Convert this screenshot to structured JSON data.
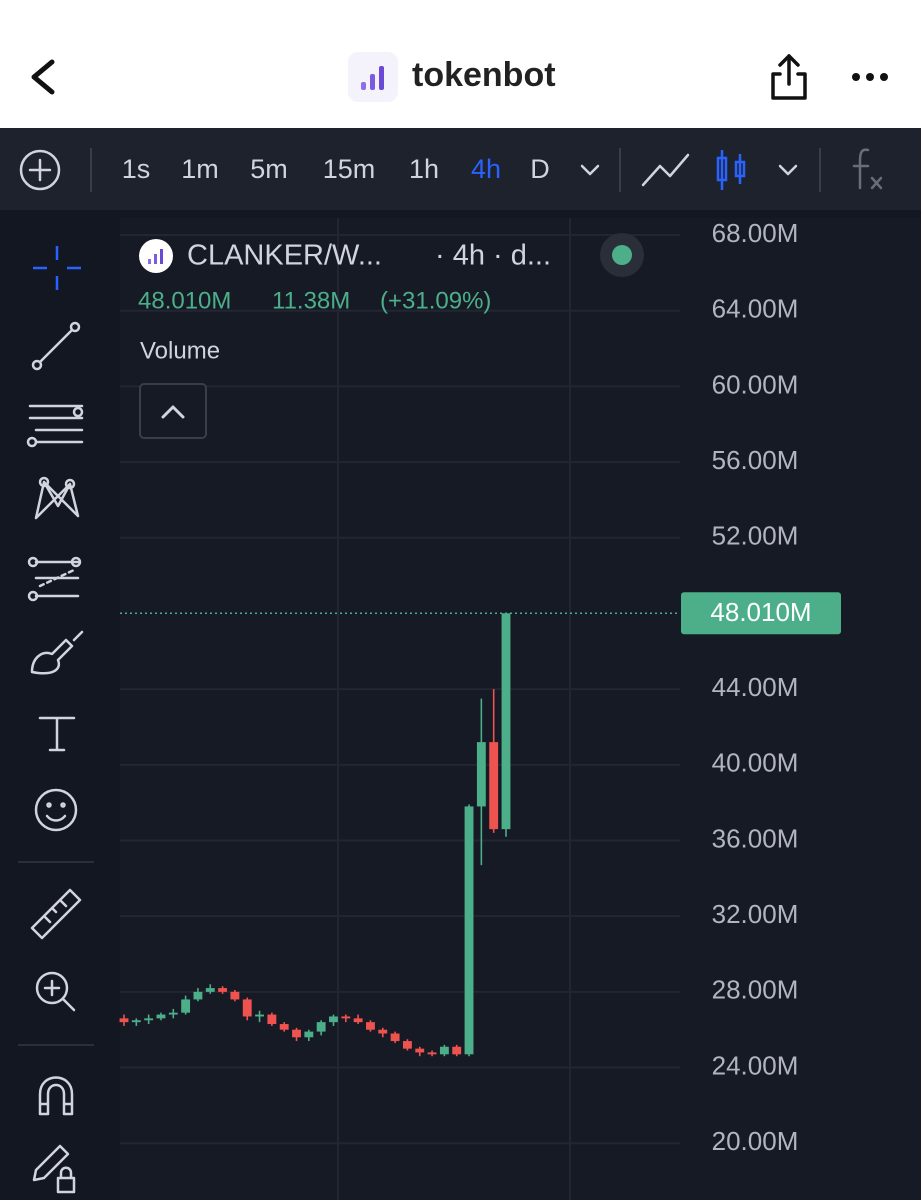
{
  "header": {
    "title": "tokenbot"
  },
  "toolbar": {
    "intervals": [
      "1s",
      "1m",
      "5m",
      "15m",
      "1h",
      "4h",
      "D"
    ],
    "active_interval_index": 5
  },
  "legend": {
    "symbol": "CLANKER/W...",
    "interval_text": "· 4h · d...",
    "price": "48.010M",
    "change": "11.38M",
    "change_percent": "(+31.09%)",
    "indicator": "Volume"
  },
  "chart": {
    "type": "candlestick",
    "ylim": [
      17,
      68.9
    ],
    "yticks": [
      {
        "value": 68,
        "label": "68.00M"
      },
      {
        "value": 64,
        "label": "64.00M"
      },
      {
        "value": 60,
        "label": "60.00M"
      },
      {
        "value": 56,
        "label": "56.00M"
      },
      {
        "value": 52,
        "label": "52.00M"
      },
      {
        "value": 44,
        "label": "44.00M"
      },
      {
        "value": 40,
        "label": "40.00M"
      },
      {
        "value": 36,
        "label": "36.00M"
      },
      {
        "value": 32,
        "label": "32.00M"
      },
      {
        "value": 28,
        "label": "28.00M"
      },
      {
        "value": 24,
        "label": "24.00M"
      },
      {
        "value": 20,
        "label": "20.00M"
      }
    ],
    "last_price": {
      "value": 48.01,
      "label": "48.010M"
    },
    "up_color": "#4caf8a",
    "down_color": "#ef5350",
    "candles": [
      {
        "open": 26.6,
        "high": 26.8,
        "low": 26.2,
        "close": 26.4
      },
      {
        "open": 26.4,
        "high": 26.6,
        "low": 26.2,
        "close": 26.5
      },
      {
        "open": 26.5,
        "high": 26.8,
        "low": 26.3,
        "close": 26.6
      },
      {
        "open": 26.6,
        "high": 26.9,
        "low": 26.5,
        "close": 26.8
      },
      {
        "open": 26.8,
        "high": 27.1,
        "low": 26.6,
        "close": 26.9
      },
      {
        "open": 26.9,
        "high": 27.8,
        "low": 26.8,
        "close": 27.6
      },
      {
        "open": 27.6,
        "high": 28.2,
        "low": 27.5,
        "close": 28.0
      },
      {
        "open": 28.0,
        "high": 28.4,
        "low": 27.9,
        "close": 28.2
      },
      {
        "open": 28.2,
        "high": 28.3,
        "low": 27.9,
        "close": 28.0
      },
      {
        "open": 28.0,
        "high": 28.1,
        "low": 27.5,
        "close": 27.6
      },
      {
        "open": 27.6,
        "high": 27.7,
        "low": 26.5,
        "close": 26.7
      },
      {
        "open": 26.7,
        "high": 27.0,
        "low": 26.4,
        "close": 26.8
      },
      {
        "open": 26.8,
        "high": 26.9,
        "low": 26.2,
        "close": 26.3
      },
      {
        "open": 26.3,
        "high": 26.4,
        "low": 25.9,
        "close": 26.0
      },
      {
        "open": 26.0,
        "high": 26.1,
        "low": 25.4,
        "close": 25.6
      },
      {
        "open": 25.6,
        "high": 26.0,
        "low": 25.4,
        "close": 25.9
      },
      {
        "open": 25.9,
        "high": 26.5,
        "low": 25.7,
        "close": 26.4
      },
      {
        "open": 26.4,
        "high": 26.8,
        "low": 26.2,
        "close": 26.7
      },
      {
        "open": 26.7,
        "high": 26.8,
        "low": 26.4,
        "close": 26.6
      },
      {
        "open": 26.6,
        "high": 26.8,
        "low": 26.3,
        "close": 26.4
      },
      {
        "open": 26.4,
        "high": 26.5,
        "low": 25.9,
        "close": 26.0
      },
      {
        "open": 26.0,
        "high": 26.1,
        "low": 25.6,
        "close": 25.8
      },
      {
        "open": 25.8,
        "high": 25.9,
        "low": 25.3,
        "close": 25.4
      },
      {
        "open": 25.4,
        "high": 25.5,
        "low": 24.9,
        "close": 25.0
      },
      {
        "open": 25.0,
        "high": 25.1,
        "low": 24.6,
        "close": 24.8
      },
      {
        "open": 24.8,
        "high": 24.9,
        "low": 24.6,
        "close": 24.7
      },
      {
        "open": 24.7,
        "high": 25.2,
        "low": 24.6,
        "close": 25.1
      },
      {
        "open": 25.1,
        "high": 25.2,
        "low": 24.6,
        "close": 24.7
      },
      {
        "open": 24.7,
        "high": 37.9,
        "low": 24.6,
        "close": 37.8
      },
      {
        "open": 37.8,
        "high": 43.5,
        "low": 34.7,
        "close": 41.2
      },
      {
        "open": 41.2,
        "high": 44.0,
        "low": 36.4,
        "close": 36.6
      },
      {
        "open": 36.6,
        "high": 48.01,
        "low": 36.2,
        "close": 48.01
      }
    ]
  }
}
